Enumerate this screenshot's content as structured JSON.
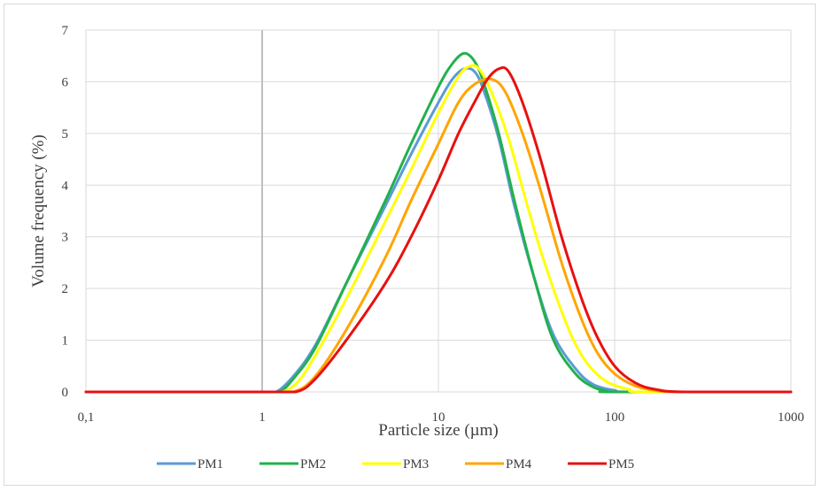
{
  "chart_data": {
    "type": "line",
    "title": "",
    "xlabel": "Particle size (µm)",
    "ylabel": "Volume frequency  (%)",
    "x_scale": "log",
    "xlim": [
      0.1,
      1000
    ],
    "ylim": [
      0,
      7
    ],
    "x_ticks": [
      0.1,
      1,
      10,
      100,
      1000
    ],
    "x_tick_labels": [
      "0,1",
      "1",
      "10",
      "100",
      "1000"
    ],
    "y_ticks": [
      0,
      1,
      2,
      3,
      4,
      5,
      6,
      7
    ],
    "y_tick_labels": [
      "0",
      "1",
      "2",
      "3",
      "4",
      "5",
      "6",
      "7"
    ],
    "grid": {
      "horizontal": true,
      "vertical": true
    },
    "legend_position": "bottom",
    "series": [
      {
        "name": "PM1",
        "color": "#5b9bd5",
        "points": [
          [
            0.1,
            0
          ],
          [
            1,
            0
          ],
          [
            1.2,
            0
          ],
          [
            1.5,
            0.3
          ],
          [
            2,
            0.9
          ],
          [
            3,
            2.1
          ],
          [
            5,
            3.6
          ],
          [
            7,
            4.6
          ],
          [
            10,
            5.6
          ],
          [
            12,
            6.05
          ],
          [
            14,
            6.25
          ],
          [
            16,
            6.2
          ],
          [
            18,
            5.85
          ],
          [
            22,
            4.9
          ],
          [
            27,
            3.6
          ],
          [
            35,
            2.2
          ],
          [
            45,
            1.1
          ],
          [
            60,
            0.45
          ],
          [
            75,
            0.15
          ],
          [
            100,
            0.03
          ],
          [
            130,
            0
          ],
          [
            1000,
            0
          ]
        ]
      },
      {
        "name": "PM2",
        "color": "#22b14c",
        "points": [
          [
            0.1,
            0
          ],
          [
            1,
            0
          ],
          [
            1.25,
            0
          ],
          [
            1.5,
            0.25
          ],
          [
            2,
            0.85
          ],
          [
            3,
            2.1
          ],
          [
            5,
            3.7
          ],
          [
            7,
            4.8
          ],
          [
            10,
            5.9
          ],
          [
            12,
            6.35
          ],
          [
            14,
            6.55
          ],
          [
            16,
            6.4
          ],
          [
            18,
            6.0
          ],
          [
            22,
            5.0
          ],
          [
            27,
            3.7
          ],
          [
            35,
            2.2
          ],
          [
            45,
            1.0
          ],
          [
            60,
            0.35
          ],
          [
            75,
            0.1
          ],
          [
            90,
            0.02
          ],
          [
            100,
            0
          ],
          [
            1000,
            0
          ]
        ]
      },
      {
        "name": "PM3",
        "color": "#ffff00",
        "points": [
          [
            0.1,
            0
          ],
          [
            1,
            0
          ],
          [
            1.3,
            0
          ],
          [
            1.6,
            0.2
          ],
          [
            2,
            0.7
          ],
          [
            3,
            1.8
          ],
          [
            5,
            3.3
          ],
          [
            7,
            4.3
          ],
          [
            10,
            5.4
          ],
          [
            13,
            6.1
          ],
          [
            15,
            6.3
          ],
          [
            17,
            6.25
          ],
          [
            20,
            5.8
          ],
          [
            25,
            4.9
          ],
          [
            32,
            3.6
          ],
          [
            40,
            2.5
          ],
          [
            55,
            1.2
          ],
          [
            70,
            0.55
          ],
          [
            90,
            0.2
          ],
          [
            120,
            0.05
          ],
          [
            150,
            0
          ],
          [
            1000,
            0
          ]
        ]
      },
      {
        "name": "PM4",
        "color": "#ffa500",
        "points": [
          [
            0.1,
            0
          ],
          [
            1,
            0
          ],
          [
            1.5,
            0
          ],
          [
            2,
            0.3
          ],
          [
            3,
            1.2
          ],
          [
            5,
            2.6
          ],
          [
            7,
            3.7
          ],
          [
            10,
            4.8
          ],
          [
            13,
            5.6
          ],
          [
            16,
            5.95
          ],
          [
            20,
            6.05
          ],
          [
            24,
            5.8
          ],
          [
            30,
            5.0
          ],
          [
            38,
            3.9
          ],
          [
            50,
            2.5
          ],
          [
            65,
            1.4
          ],
          [
            80,
            0.75
          ],
          [
            100,
            0.35
          ],
          [
            130,
            0.12
          ],
          [
            170,
            0.03
          ],
          [
            230,
            0
          ],
          [
            1000,
            0
          ]
        ]
      },
      {
        "name": "PM5",
        "color": "#e81010",
        "points": [
          [
            0.1,
            0
          ],
          [
            1,
            0
          ],
          [
            1.55,
            0
          ],
          [
            2,
            0.25
          ],
          [
            3,
            1.0
          ],
          [
            5,
            2.1
          ],
          [
            7,
            3.0
          ],
          [
            10,
            4.1
          ],
          [
            13,
            5.0
          ],
          [
            16,
            5.6
          ],
          [
            19,
            6.05
          ],
          [
            22,
            6.25
          ],
          [
            25,
            6.2
          ],
          [
            30,
            5.6
          ],
          [
            38,
            4.5
          ],
          [
            50,
            3.0
          ],
          [
            65,
            1.8
          ],
          [
            80,
            1.05
          ],
          [
            100,
            0.5
          ],
          [
            130,
            0.18
          ],
          [
            170,
            0.05
          ],
          [
            250,
            0
          ],
          [
            1000,
            0
          ]
        ]
      }
    ]
  }
}
